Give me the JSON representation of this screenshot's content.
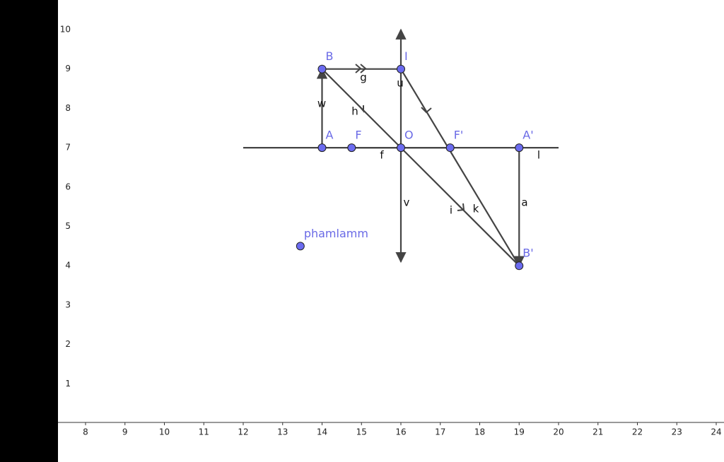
{
  "axes": {
    "xticks": [
      8,
      9,
      10,
      11,
      12,
      13,
      14,
      15,
      16,
      17,
      18,
      19,
      20,
      21,
      22,
      23,
      24
    ],
    "yticks": [
      1,
      2,
      3,
      4,
      5,
      6,
      7,
      8,
      9,
      10
    ]
  },
  "segments": [
    {
      "label": "l",
      "x1": 12,
      "y1": 7,
      "x2": 20,
      "y2": 7
    },
    {
      "label": "f",
      "x1": 14.75,
      "y1": 7,
      "x2": 17.25,
      "y2": 7
    },
    {
      "label": "w",
      "x1": 14,
      "y1": 7,
      "x2": 14,
      "y2": 9
    },
    {
      "label": "g",
      "x1": 14,
      "y1": 9,
      "x2": 16,
      "y2": 9
    },
    {
      "label": "h",
      "x1": 14,
      "y1": 9,
      "x2": 16,
      "y2": 7
    },
    {
      "label": "u",
      "x1": 16,
      "y1": 7,
      "x2": 16,
      "y2": 10
    },
    {
      "label": "v",
      "x1": 16,
      "y1": 7,
      "x2": 16,
      "y2": 4.1
    },
    {
      "label": "k",
      "x1": 16,
      "y1": 9,
      "x2": 19,
      "y2": 4
    },
    {
      "label": "i",
      "x1": 16,
      "y1": 7,
      "x2": 19,
      "y2": 4
    },
    {
      "label": "a",
      "x1": 19,
      "y1": 7,
      "x2": 19,
      "y2": 4
    }
  ],
  "points": [
    {
      "label": "A",
      "x": 14,
      "y": 7
    },
    {
      "label": "B",
      "x": 14,
      "y": 9
    },
    {
      "label": "F",
      "x": 14.75,
      "y": 7
    },
    {
      "label": "O",
      "x": 16,
      "y": 7
    },
    {
      "label": "F'",
      "x": 17.25,
      "y": 7
    },
    {
      "label": "A'",
      "x": 19,
      "y": 7
    },
    {
      "label": "B'",
      "x": 19,
      "y": 4
    },
    {
      "label": "I",
      "x": 16,
      "y": 9
    },
    {
      "label": "phamlamm",
      "x": 13.45,
      "y": 4.5
    }
  ]
}
